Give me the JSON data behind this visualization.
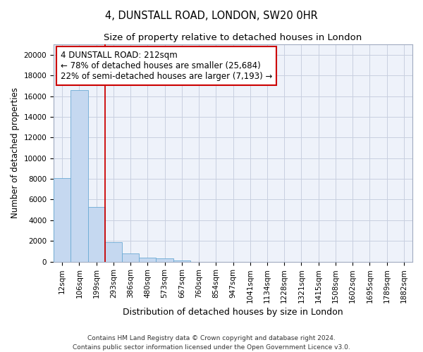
{
  "title": "4, DUNSTALL ROAD, LONDON, SW20 0HR",
  "subtitle": "Size of property relative to detached houses in London",
  "xlabel": "Distribution of detached houses by size in London",
  "ylabel": "Number of detached properties",
  "categories": [
    "12sqm",
    "106sqm",
    "199sqm",
    "293sqm",
    "386sqm",
    "480sqm",
    "573sqm",
    "667sqm",
    "760sqm",
    "854sqm",
    "947sqm",
    "1041sqm",
    "1134sqm",
    "1228sqm",
    "1321sqm",
    "1415sqm",
    "1508sqm",
    "1602sqm",
    "1695sqm",
    "1789sqm",
    "1882sqm"
  ],
  "values": [
    8100,
    16600,
    5300,
    1850,
    800,
    350,
    280,
    100,
    0,
    0,
    0,
    0,
    0,
    0,
    0,
    0,
    0,
    0,
    0,
    0,
    0
  ],
  "bar_color": "#c5d8f0",
  "bar_edge_color": "#6aaad4",
  "red_line_index": 2,
  "annotation_line1": "4 DUNSTALL ROAD: 212sqm",
  "annotation_line2": "← 78% of detached houses are smaller (25,684)",
  "annotation_line3": "22% of semi-detached houses are larger (7,193) →",
  "annotation_box_color": "#ffffff",
  "annotation_border_color": "#cc0000",
  "ylim": [
    0,
    21000
  ],
  "yticks": [
    0,
    2000,
    4000,
    6000,
    8000,
    10000,
    12000,
    14000,
    16000,
    18000,
    20000
  ],
  "footer_line1": "Contains HM Land Registry data © Crown copyright and database right 2024.",
  "footer_line2": "Contains public sector information licensed under the Open Government Licence v3.0.",
  "background_color": "#eef2fa",
  "grid_color": "#c8cfe0",
  "title_fontsize": 10.5,
  "subtitle_fontsize": 9.5,
  "tick_fontsize": 7.5,
  "ylabel_fontsize": 8.5,
  "xlabel_fontsize": 9,
  "annotation_fontsize": 8.5,
  "footer_fontsize": 6.5
}
